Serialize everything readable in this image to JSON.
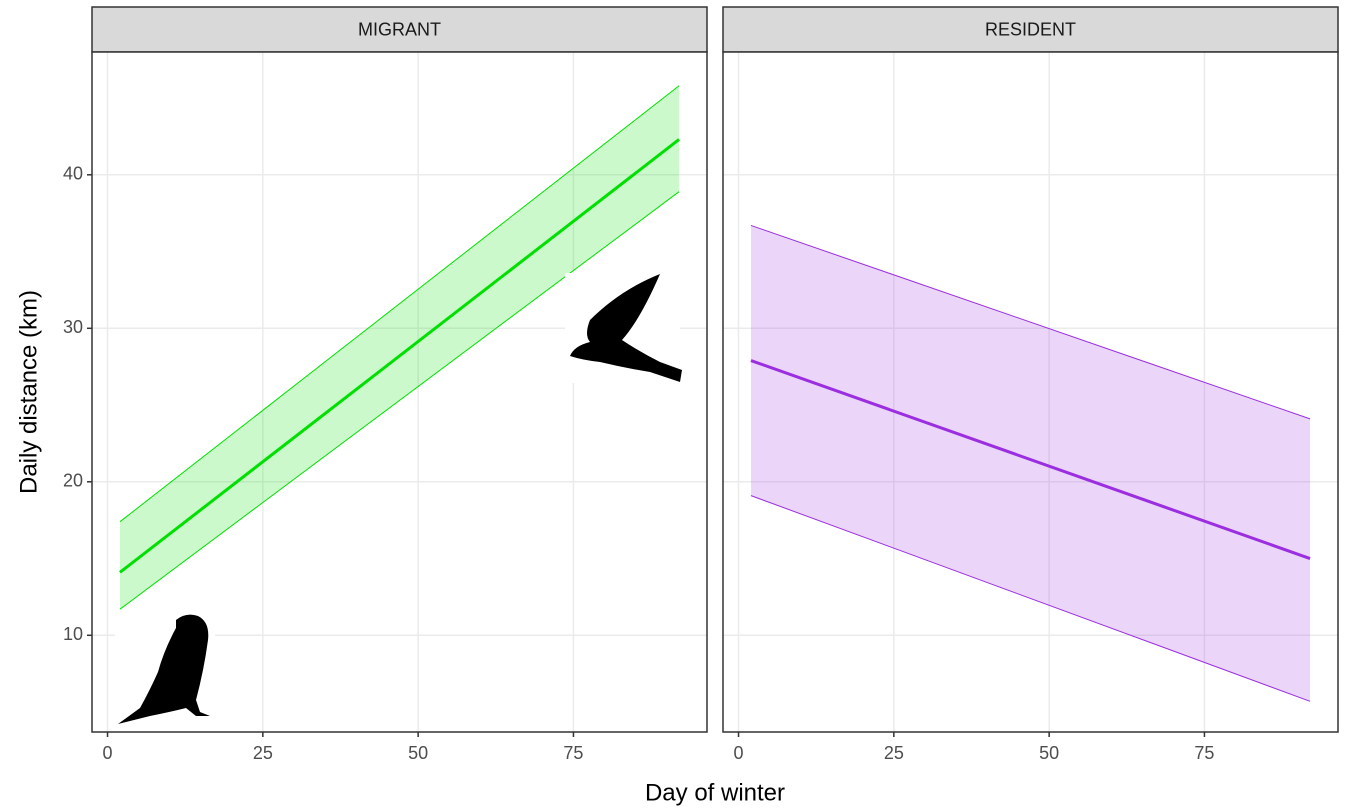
{
  "x_label": "Day of winter",
  "y_label": "Daily distance (km)",
  "chart_data": [
    {
      "type": "line",
      "facet": "MIGRANT",
      "x": [
        2,
        92
      ],
      "xlim": [
        -2.5,
        96.5
      ],
      "xticks": [
        0,
        25,
        50,
        75
      ],
      "ylim": [
        3.7,
        48
      ],
      "yticks": [
        10,
        20,
        30,
        40
      ],
      "grid": true,
      "series": [
        {
          "color": "#00e000",
          "values": [
            14.1,
            42.3
          ],
          "lower": [
            11.7,
            38.9
          ],
          "upper": [
            17.4,
            45.8
          ]
        }
      ]
    },
    {
      "type": "line",
      "facet": "RESIDENT",
      "x": [
        2,
        92
      ],
      "xlim": [
        -2.5,
        96.5
      ],
      "xticks": [
        0,
        25,
        50,
        75
      ],
      "ylim": [
        3.7,
        48
      ],
      "yticks": [
        10,
        20,
        30,
        40
      ],
      "grid": true,
      "series": [
        {
          "color": "#9a2ee0",
          "values": [
            27.9,
            15.0
          ],
          "lower": [
            19.1,
            5.7
          ],
          "upper": [
            36.7,
            24.1
          ]
        }
      ]
    }
  ]
}
